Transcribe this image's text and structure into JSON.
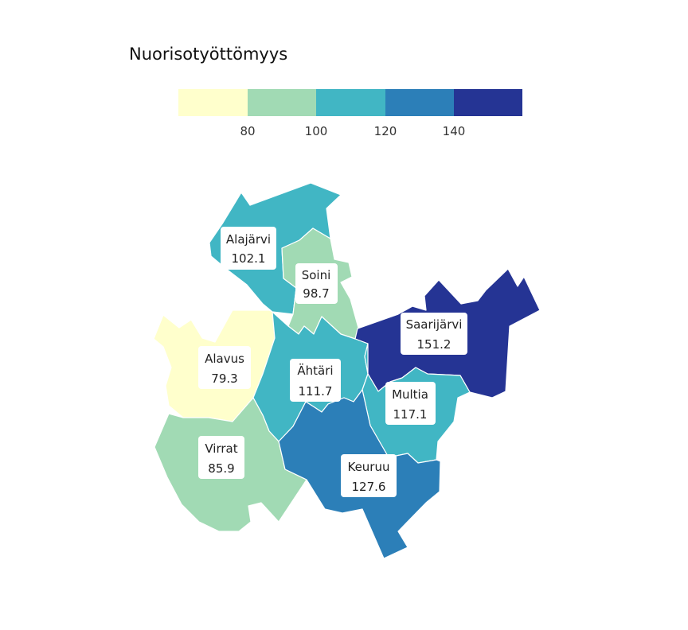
{
  "legend": {
    "title": "Nuorisotyöttömyys",
    "colors": [
      "#ffffcc",
      "#a1dab4",
      "#41b6c4",
      "#2c7fb8",
      "#253494"
    ],
    "ticks": [
      "80",
      "100",
      "120",
      "140"
    ],
    "breaks": [
      80,
      100,
      120,
      140
    ]
  },
  "regions": [
    {
      "name": "Alajärvi",
      "value": "102.1",
      "color": "#41b6c4"
    },
    {
      "name": "Soini",
      "value": "98.7",
      "color": "#a1dab4"
    },
    {
      "name": "Saarijärvi",
      "value": "151.2",
      "color": "#253494"
    },
    {
      "name": "Alavus",
      "value": "79.3",
      "color": "#ffffcc"
    },
    {
      "name": "Ähtäri",
      "value": "111.7",
      "color": "#41b6c4"
    },
    {
      "name": "Multia",
      "value": "117.1",
      "color": "#41b6c4"
    },
    {
      "name": "Virrat",
      "value": "85.9",
      "color": "#a1dab4"
    },
    {
      "name": "Keuruu",
      "value": "127.6",
      "color": "#2c7fb8"
    }
  ]
}
